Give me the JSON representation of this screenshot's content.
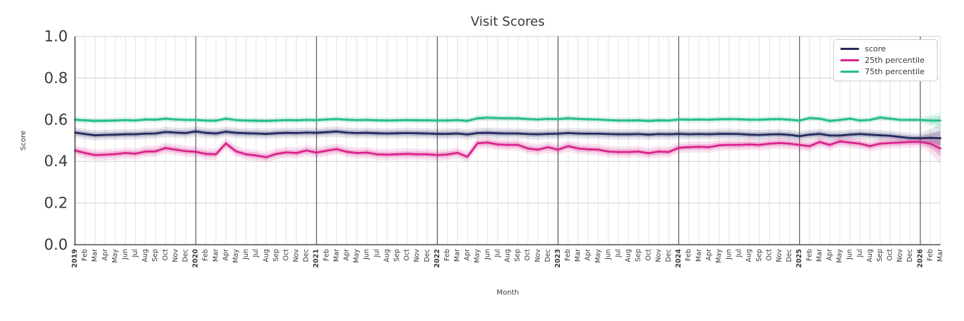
{
  "chart_data": {
    "type": "line",
    "title": "Visit Scores",
    "xlabel": "Month",
    "ylabel": "Score",
    "ylim": [
      0.0,
      1.0
    ],
    "yticks": {
      "values": [
        0.0,
        0.2,
        0.4,
        0.6,
        0.8,
        1.0
      ],
      "labels": [
        "0.0",
        "0.2",
        "0.4",
        "0.6",
        "0.8",
        "1.0"
      ]
    },
    "grid": true,
    "legend_position": "upper right",
    "x_labels": [
      "2019",
      "Feb",
      "Mar",
      "Apr",
      "May",
      "Jun",
      "Jul",
      "Aug",
      "Sep",
      "Oct",
      "Nov",
      "Dec",
      "2020",
      "Feb",
      "Mar",
      "Apr",
      "May",
      "Jun",
      "Jul",
      "Aug",
      "Sep",
      "Oct",
      "Nov",
      "Dec",
      "2021",
      "Feb",
      "Mar",
      "Apr",
      "May",
      "Jun",
      "Jul",
      "Aug",
      "Sep",
      "Oct",
      "Nov",
      "Dec",
      "2022",
      "Feb",
      "Mar",
      "Apr",
      "May",
      "Jun",
      "Jul",
      "Aug",
      "Sep",
      "Oct",
      "Nov",
      "Dec",
      "2023",
      "Feb",
      "Mar",
      "Apr",
      "May",
      "Jun",
      "Jul",
      "Aug",
      "Sep",
      "Oct",
      "Nov",
      "Dec",
      "2024",
      "Feb",
      "Mar",
      "Apr",
      "May",
      "Jun",
      "Jul",
      "Aug",
      "Sep",
      "Oct",
      "Nov",
      "Dec",
      "2025",
      "Feb",
      "Mar",
      "Apr",
      "May",
      "Jun",
      "Jul",
      "Aug",
      "Sep",
      "Oct",
      "Nov",
      "Dec",
      "2026",
      "Feb",
      "Mar"
    ],
    "series": [
      {
        "name": "score",
        "color": "#262c5f",
        "band_halfwidth": 0.013,
        "values": [
          0.538,
          0.531,
          0.525,
          0.527,
          0.528,
          0.53,
          0.53,
          0.533,
          0.534,
          0.541,
          0.538,
          0.536,
          0.544,
          0.537,
          0.534,
          0.542,
          0.537,
          0.535,
          0.534,
          0.532,
          0.535,
          0.537,
          0.536,
          0.538,
          0.537,
          0.54,
          0.543,
          0.538,
          0.536,
          0.537,
          0.535,
          0.534,
          0.535,
          0.536,
          0.535,
          0.534,
          0.532,
          0.532,
          0.534,
          0.529,
          0.536,
          0.537,
          0.535,
          0.534,
          0.534,
          0.531,
          0.53,
          0.532,
          0.533,
          0.536,
          0.534,
          0.533,
          0.533,
          0.531,
          0.53,
          0.53,
          0.531,
          0.528,
          0.531,
          0.53,
          0.532,
          0.53,
          0.531,
          0.53,
          0.532,
          0.532,
          0.531,
          0.528,
          0.527,
          0.529,
          0.53,
          0.527,
          0.521,
          0.528,
          0.532,
          0.524,
          0.524,
          0.528,
          0.531,
          0.528,
          0.525,
          0.523,
          0.517,
          0.512,
          0.511,
          0.513,
          0.511
        ]
      },
      {
        "name": "25th percentile",
        "color": "#d9248c",
        "band_halfwidth": 0.014,
        "values": [
          0.452,
          0.44,
          0.43,
          0.432,
          0.435,
          0.44,
          0.437,
          0.447,
          0.448,
          0.464,
          0.456,
          0.449,
          0.446,
          0.436,
          0.434,
          0.486,
          0.448,
          0.434,
          0.428,
          0.42,
          0.436,
          0.443,
          0.44,
          0.452,
          0.442,
          0.451,
          0.459,
          0.446,
          0.44,
          0.442,
          0.434,
          0.432,
          0.434,
          0.436,
          0.434,
          0.434,
          0.43,
          0.433,
          0.441,
          0.422,
          0.487,
          0.49,
          0.481,
          0.479,
          0.479,
          0.462,
          0.456,
          0.468,
          0.456,
          0.473,
          0.462,
          0.458,
          0.456,
          0.447,
          0.445,
          0.445,
          0.447,
          0.439,
          0.447,
          0.445,
          0.465,
          0.468,
          0.47,
          0.468,
          0.477,
          0.479,
          0.479,
          0.481,
          0.479,
          0.485,
          0.488,
          0.485,
          0.479,
          0.473,
          0.493,
          0.479,
          0.496,
          0.49,
          0.485,
          0.473,
          0.485,
          0.488,
          0.49,
          0.493,
          0.493,
          0.485,
          0.462
        ]
      },
      {
        "name": "75th percentile",
        "color": "#27bd8e",
        "band_halfwidth": 0.008,
        "values": [
          0.6,
          0.597,
          0.594,
          0.595,
          0.596,
          0.598,
          0.596,
          0.601,
          0.6,
          0.605,
          0.601,
          0.599,
          0.599,
          0.596,
          0.595,
          0.605,
          0.598,
          0.596,
          0.595,
          0.594,
          0.596,
          0.598,
          0.597,
          0.599,
          0.598,
          0.601,
          0.603,
          0.6,
          0.598,
          0.599,
          0.597,
          0.596,
          0.597,
          0.598,
          0.597,
          0.597,
          0.596,
          0.596,
          0.598,
          0.594,
          0.607,
          0.61,
          0.608,
          0.607,
          0.607,
          0.603,
          0.601,
          0.604,
          0.603,
          0.607,
          0.604,
          0.602,
          0.601,
          0.598,
          0.596,
          0.596,
          0.597,
          0.594,
          0.597,
          0.596,
          0.601,
          0.6,
          0.601,
          0.6,
          0.602,
          0.603,
          0.602,
          0.6,
          0.6,
          0.602,
          0.603,
          0.6,
          0.596,
          0.608,
          0.605,
          0.594,
          0.599,
          0.605,
          0.596,
          0.599,
          0.611,
          0.605,
          0.599,
          0.599,
          0.599,
          0.596,
          0.596
        ]
      }
    ],
    "band_end_flare": [
      1.0,
      1.7,
      2.8
    ],
    "colors": {
      "grid_minor": "#e4e4e4",
      "grid_major": "#d0d0d0",
      "year_line": "#3c3c3c",
      "spine": "#2e2e2e",
      "text": "#3a3a3a",
      "background": "#ffffff"
    }
  }
}
